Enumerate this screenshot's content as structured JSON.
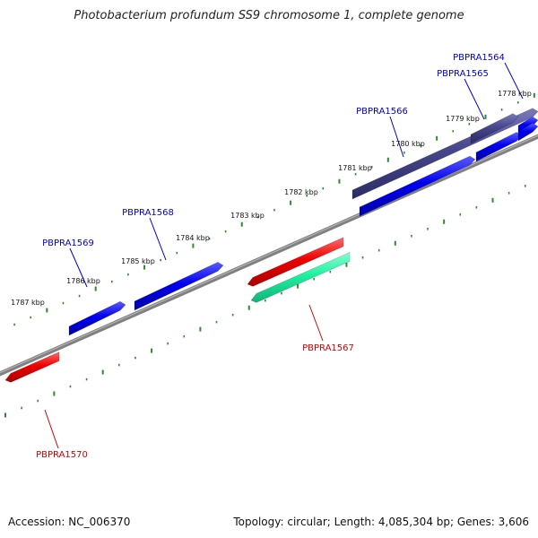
{
  "title": "Photobacterium profundum SS9 chromosome 1, complete genome",
  "footer": {
    "accession": "Accession: NC_006370",
    "summary": "Topology: circular; Length: 4,085,304 bp; Genes: 3,606"
  },
  "colors": {
    "backbone": "#808080",
    "tick": "#2e8b2e",
    "gene_blue": "#0000ee",
    "gene_slate": "#46468c",
    "gene_red": "#ee0000",
    "gene_teal": "#1ef0a0",
    "label_blue": "#0000cc",
    "label_red": "#cc0000"
  },
  "ticks": {
    "labels": [
      "1778 kbp",
      "1779 kbp",
      "1780 kbp",
      "1781 kbp",
      "1782 kbp",
      "1783 kbp",
      "1784 kbp",
      "1785 kbp",
      "1786 kbp",
      "1787 kbp"
    ]
  },
  "genes": [
    {
      "id": "PBPRA1564",
      "color": "blue"
    },
    {
      "id": "PBPRA1565",
      "color": "blue"
    },
    {
      "id": "PBPRA1566",
      "color": "slate"
    },
    {
      "id": "PBPRA1567",
      "color": "teal"
    },
    {
      "id": "PBPRA1568",
      "color": "blue"
    },
    {
      "id": "PBPRA1569",
      "color": "blue"
    },
    {
      "id": "PBPRA1570",
      "color": "red"
    }
  ]
}
